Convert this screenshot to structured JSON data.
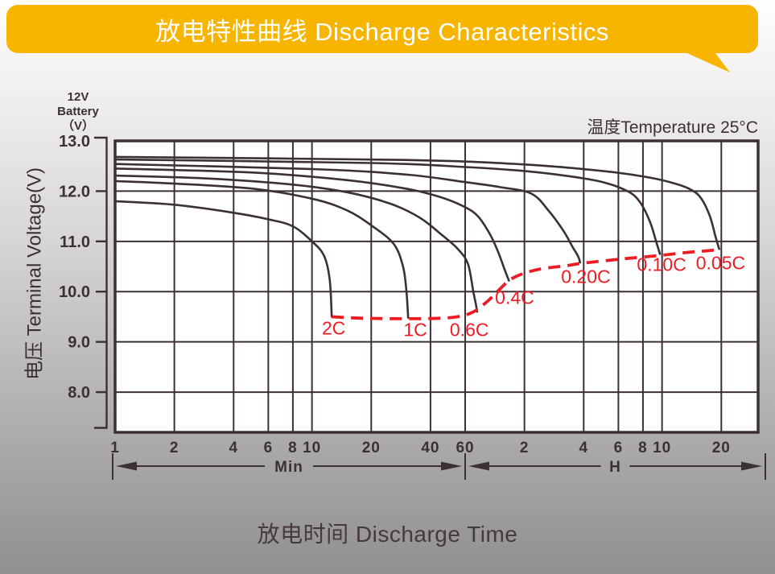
{
  "banner": {
    "title": "放电特性曲线 Discharge Characteristics"
  },
  "labels": {
    "battery_line1": "12V",
    "battery_line2": "Battery",
    "battery_line3": "（V）",
    "temperature": "温度Temperature 25°C",
    "y_axis": "电压 Terminal Voltage(V)",
    "x_axis": "放电时间 Discharge Time"
  },
  "colors": {
    "banner": "#F7B500",
    "ink": "#3B3134",
    "red": "#ED1C24",
    "plot_bg": "#FFFFFF",
    "title_text": "#FFFFFF"
  },
  "chart_data": {
    "type": "line",
    "title": "放电特性曲线 Discharge Characteristics",
    "xlabel": "放电时间 Discharge Time",
    "ylabel": "电压 Terminal Voltage(V)",
    "x_scale": "log",
    "x_unit_note": "minutes 1-60 then hours 2-20 on shared log axis",
    "xlim_minutes": [
      1,
      1845
    ],
    "ylim": [
      7.2,
      13.0
    ],
    "grid": true,
    "y_ticks": [
      {
        "v": 13,
        "label": "13.0"
      },
      {
        "v": 12,
        "label": "12.0"
      },
      {
        "v": 11,
        "label": "11.0"
      },
      {
        "v": 10,
        "label": "10.0"
      },
      {
        "v": 9,
        "label": "9.0"
      },
      {
        "v": 8,
        "label": "8.0"
      }
    ],
    "x_ticks": [
      {
        "t": 1,
        "label": "1"
      },
      {
        "t": 2,
        "label": "2"
      },
      {
        "t": 4,
        "label": "4"
      },
      {
        "t": 6,
        "label": "6"
      },
      {
        "t": 8,
        "label": "8"
      },
      {
        "t": 10,
        "label": "10"
      },
      {
        "t": 20,
        "label": "20"
      },
      {
        "t": 40,
        "label": "40"
      },
      {
        "t": 60,
        "label": "60"
      },
      {
        "t": 120,
        "label": "2"
      },
      {
        "t": 240,
        "label": "4"
      },
      {
        "t": 360,
        "label": "6"
      },
      {
        "t": 480,
        "label": "8"
      },
      {
        "t": 600,
        "label": "10"
      },
      {
        "t": 1200,
        "label": "20"
      }
    ],
    "spans": [
      {
        "label": "Min",
        "from_t": 1,
        "to_t": 60
      },
      {
        "label": "H",
        "from_t": 60,
        "to_t": 1845
      }
    ],
    "series": [
      {
        "name": "2C",
        "label": "2C",
        "label_t": 12.9,
        "label_v": 9.46,
        "points": [
          [
            1,
            11.8
          ],
          [
            2,
            11.73
          ],
          [
            4,
            11.57
          ],
          [
            6,
            11.44
          ],
          [
            8,
            11.3
          ],
          [
            10,
            11.0
          ],
          [
            11.5,
            10.72
          ],
          [
            12.3,
            10.25
          ],
          [
            12.6,
            9.5
          ]
        ]
      },
      {
        "name": "1C",
        "label": "1C",
        "label_t": 33.5,
        "label_v": 9.43,
        "points": [
          [
            1,
            12.2
          ],
          [
            2,
            12.15
          ],
          [
            5,
            12.05
          ],
          [
            10,
            11.85
          ],
          [
            15,
            11.62
          ],
          [
            20,
            11.32
          ],
          [
            26,
            10.95
          ],
          [
            29,
            10.5
          ],
          [
            30.2,
            10.0
          ],
          [
            30.8,
            9.48
          ]
        ]
      },
      {
        "name": "0.6C",
        "label": "0.6C",
        "label_t": 63,
        "label_v": 9.43,
        "points": [
          [
            1,
            12.31
          ],
          [
            3,
            12.25
          ],
          [
            8,
            12.13
          ],
          [
            15,
            11.98
          ],
          [
            25,
            11.75
          ],
          [
            35,
            11.48
          ],
          [
            45,
            11.15
          ],
          [
            55,
            10.85
          ],
          [
            62,
            10.55
          ],
          [
            66,
            10.0
          ],
          [
            68,
            9.75
          ],
          [
            69,
            9.6
          ]
        ]
      },
      {
        "name": "0.4C",
        "label": "0.4C",
        "label_t": 107,
        "label_v": 10.07,
        "points": [
          [
            1,
            12.45
          ],
          [
            5,
            12.37
          ],
          [
            15,
            12.22
          ],
          [
            30,
            12.05
          ],
          [
            45,
            11.88
          ],
          [
            60,
            11.68
          ],
          [
            70,
            11.49
          ],
          [
            80,
            11.15
          ],
          [
            88,
            10.8
          ],
          [
            95,
            10.45
          ],
          [
            100,
            10.22
          ]
        ]
      },
      {
        "name": "0.2C",
        "label": "0.20C",
        "label_t": 246,
        "label_v": 10.49,
        "points": [
          [
            1,
            12.54
          ],
          [
            10,
            12.44
          ],
          [
            30,
            12.33
          ],
          [
            60,
            12.18
          ],
          [
            90,
            12.08
          ],
          [
            130,
            11.95
          ],
          [
            160,
            11.6
          ],
          [
            190,
            11.2
          ],
          [
            210,
            10.9
          ],
          [
            225,
            10.7
          ],
          [
            230,
            10.58
          ]
        ]
      },
      {
        "name": "0.1C",
        "label": "0.10C",
        "label_t": 597,
        "label_v": 10.73,
        "points": [
          [
            1,
            12.63
          ],
          [
            20,
            12.56
          ],
          [
            60,
            12.48
          ],
          [
            120,
            12.4
          ],
          [
            200,
            12.3
          ],
          [
            300,
            12.18
          ],
          [
            400,
            12.0
          ],
          [
            460,
            11.8
          ],
          [
            520,
            11.4
          ],
          [
            560,
            11.0
          ],
          [
            585,
            10.75
          ]
        ]
      },
      {
        "name": "0.05C",
        "label": "0.05C",
        "label_t": 1190,
        "label_v": 10.76,
        "points": [
          [
            1,
            12.68
          ],
          [
            30,
            12.62
          ],
          [
            120,
            12.53
          ],
          [
            300,
            12.4
          ],
          [
            500,
            12.28
          ],
          [
            700,
            12.15
          ],
          [
            850,
            12.02
          ],
          [
            950,
            11.85
          ],
          [
            1050,
            11.5
          ],
          [
            1120,
            11.1
          ],
          [
            1170,
            10.85
          ]
        ]
      }
    ],
    "eod_line": {
      "name": "end-of-discharge-voltage",
      "style": "dashed-red",
      "points": [
        [
          12.6,
          9.5
        ],
        [
          18,
          9.47
        ],
        [
          31,
          9.46
        ],
        [
          45,
          9.47
        ],
        [
          55,
          9.5
        ],
        [
          63,
          9.56
        ],
        [
          70,
          9.66
        ],
        [
          80,
          9.85
        ],
        [
          90,
          10.05
        ],
        [
          100,
          10.22
        ],
        [
          110,
          10.31
        ],
        [
          125,
          10.39
        ],
        [
          150,
          10.46
        ],
        [
          200,
          10.52
        ],
        [
          230,
          10.56
        ],
        [
          300,
          10.61
        ],
        [
          400,
          10.66
        ],
        [
          585,
          10.72
        ],
        [
          800,
          10.78
        ],
        [
          1000,
          10.81
        ],
        [
          1170,
          10.84
        ]
      ]
    }
  }
}
